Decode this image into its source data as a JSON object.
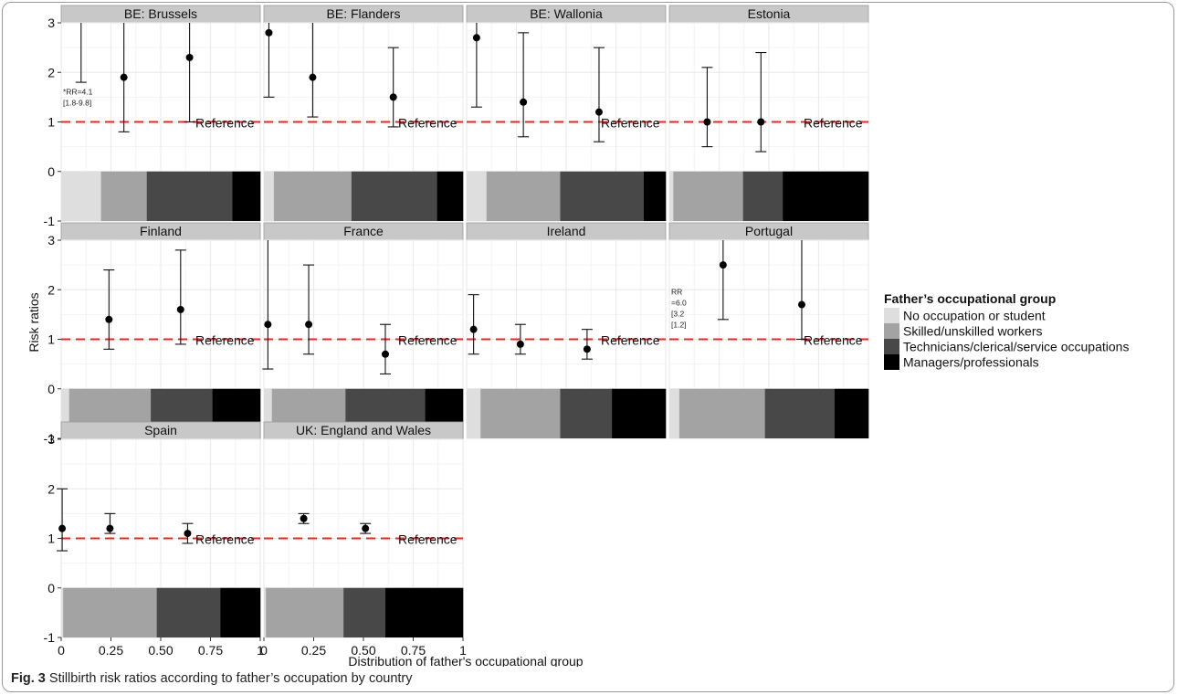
{
  "figure": {
    "caption_label": "Fig. 3",
    "caption_text": "Stillbirth risk ratios according to father’s occupation by country"
  },
  "colors": {
    "no_occupation": "#dedede",
    "skilled": "#a3a3a3",
    "technicians": "#484848",
    "managers": "#000000",
    "reference_line": "#e8262a",
    "strip": "#c8c8c8",
    "panel_bg": "#ffffff",
    "grid": "#ebebeb"
  },
  "chart_data": {
    "type": "scatter",
    "ylabel": "Risk ratios",
    "xlabel": "Distribution of father's occupational group",
    "ylim": [
      -1,
      3
    ],
    "xlim": [
      0,
      1
    ],
    "y_ticks": [
      "-1",
      "0",
      "1",
      "2",
      "3"
    ],
    "x_ticks": [
      "0",
      "0.25",
      "0.50",
      "0.75",
      "1"
    ],
    "x_tick_values": [
      0,
      0.25,
      0.5,
      0.75,
      1
    ],
    "reference_value": 1,
    "reference_label": "Reference",
    "legend": {
      "title": "Father’s occupational group",
      "position": "right",
      "items": [
        {
          "label": "No occupation or student",
          "color_key": "no_occupation"
        },
        {
          "label": "Skilled/unskilled workers",
          "color_key": "skilled"
        },
        {
          "label": "Technicians/clerical/service occupations",
          "color_key": "technicians"
        },
        {
          "label": "Managers/professionals",
          "color_key": "managers"
        }
      ]
    },
    "panels": [
      {
        "title": "BE: Brussels",
        "shares": [
          0.2,
          0.23,
          0.43,
          0.14
        ],
        "points": [
          {
            "x": 0.1,
            "y": null,
            "lo": 1.8,
            "hi": 3.0,
            "note": [
              "*RR=4.1",
              "[1.8-9.8]"
            ]
          },
          {
            "x": 0.315,
            "y": 1.9,
            "lo": 0.8,
            "hi": 3.0
          },
          {
            "x": 0.645,
            "y": 2.3,
            "lo": 1.0,
            "hi": 3.0
          }
        ]
      },
      {
        "title": "BE: Flanders",
        "shares": [
          0.05,
          0.39,
          0.43,
          0.13
        ],
        "points": [
          {
            "x": 0.025,
            "y": 2.8,
            "lo": 1.5,
            "hi": 3.0
          },
          {
            "x": 0.245,
            "y": 1.9,
            "lo": 1.1,
            "hi": 3.0
          },
          {
            "x": 0.65,
            "y": 1.5,
            "lo": 0.9,
            "hi": 2.5
          }
        ]
      },
      {
        "title": "BE: Wallonia",
        "shares": [
          0.1,
          0.37,
          0.42,
          0.11
        ],
        "points": [
          {
            "x": 0.05,
            "y": 2.7,
            "lo": 1.3,
            "hi": 3.0
          },
          {
            "x": 0.285,
            "y": 1.4,
            "lo": 0.7,
            "hi": 2.8
          },
          {
            "x": 0.665,
            "y": 1.2,
            "lo": 0.6,
            "hi": 2.5
          }
        ]
      },
      {
        "title": "Estonia",
        "shares": [
          0.02,
          0.35,
          0.2,
          0.43
        ],
        "points": [
          {
            "x": 0.19,
            "y": 1.0,
            "lo": 0.5,
            "hi": 2.1
          },
          {
            "x": 0.46,
            "y": 1.0,
            "lo": 0.4,
            "hi": 2.4
          }
        ]
      },
      {
        "title": "Finland",
        "shares": [
          0.04,
          0.41,
          0.31,
          0.24
        ],
        "points": [
          {
            "x": 0.24,
            "y": 1.4,
            "lo": 0.8,
            "hi": 2.4
          },
          {
            "x": 0.6,
            "y": 1.6,
            "lo": 0.9,
            "hi": 2.8
          }
        ]
      },
      {
        "title": "France",
        "shares": [
          0.04,
          0.37,
          0.4,
          0.19
        ],
        "points": [
          {
            "x": 0.02,
            "y": 1.3,
            "lo": 0.4,
            "hi": 3.0
          },
          {
            "x": 0.225,
            "y": 1.3,
            "lo": 0.7,
            "hi": 2.5
          },
          {
            "x": 0.61,
            "y": 0.7,
            "lo": 0.3,
            "hi": 1.3
          }
        ]
      },
      {
        "title": "Ireland",
        "shares": [
          0.07,
          0.4,
          0.26,
          0.27
        ],
        "points": [
          {
            "x": 0.035,
            "y": 1.2,
            "lo": 0.7,
            "hi": 1.9
          },
          {
            "x": 0.27,
            "y": 0.9,
            "lo": 0.7,
            "hi": 1.3
          },
          {
            "x": 0.605,
            "y": 0.8,
            "lo": 0.6,
            "hi": 1.2
          }
        ]
      },
      {
        "title": "Portugal",
        "shares": [
          0.05,
          0.43,
          0.35,
          0.17
        ],
        "points": [
          {
            "x": 0.03,
            "y": null,
            "lo": null,
            "hi": null,
            "note": [
              "RR",
              "=6.0",
              "[3.2",
              "[1.2]"
            ]
          },
          {
            "x": 0.27,
            "y": 2.5,
            "lo": 1.4,
            "hi": 3.0
          },
          {
            "x": 0.665,
            "y": 1.7,
            "lo": 1.0,
            "hi": 3.0
          }
        ]
      },
      {
        "title": "Spain",
        "shares": [
          0.01,
          0.47,
          0.32,
          0.2
        ],
        "points": [
          {
            "x": 0.005,
            "y": 1.2,
            "lo": 0.75,
            "hi": 2.0
          },
          {
            "x": 0.245,
            "y": 1.2,
            "lo": 1.1,
            "hi": 1.5
          },
          {
            "x": 0.635,
            "y": 1.1,
            "lo": 0.9,
            "hi": 1.3
          }
        ]
      },
      {
        "title": "UK: England and Wales",
        "shares": [
          0.01,
          0.39,
          0.21,
          0.39
        ],
        "points": [
          {
            "x": 0.2,
            "y": 1.4,
            "lo": 1.3,
            "hi": 1.5
          },
          {
            "x": 0.51,
            "y": 1.2,
            "lo": 1.1,
            "hi": 1.3
          }
        ]
      }
    ]
  }
}
